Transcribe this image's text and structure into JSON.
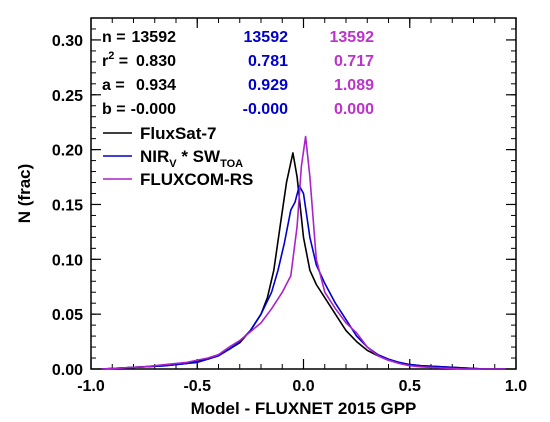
{
  "chart_data": {
    "type": "line",
    "xlabel": "Model - FLUXNET 2015 GPP",
    "ylabel": "N (frac)",
    "xlim": [
      -1.0,
      1.0
    ],
    "ylim": [
      0.0,
      0.32
    ],
    "xticks": [
      "-1.0",
      "-0.5",
      "0.0",
      "0.5",
      "1.0"
    ],
    "yticks": [
      "0.00",
      "0.05",
      "0.10",
      "0.15",
      "0.20",
      "0.25",
      "0.30"
    ],
    "xtick_values": [
      -1.0,
      -0.5,
      0.0,
      0.5,
      1.0
    ],
    "ytick_values": [
      0.0,
      0.05,
      0.1,
      0.15,
      0.2,
      0.25,
      0.3
    ],
    "x_minor_step": 0.1,
    "y_minor_step": 0.01,
    "grid": false,
    "legend_position": "upper-left",
    "stats": {
      "labels": [
        {
          "main": "n =",
          "sup": ""
        },
        {
          "main": "r",
          "sup": "2",
          "rest": " ="
        },
        {
          "main": "a =",
          "sup": ""
        },
        {
          "main": "b =",
          "sup": ""
        }
      ],
      "columns": [
        {
          "color": "#000000",
          "values": [
            "13592",
            "0.830",
            "0.934",
            "-0.000"
          ]
        },
        {
          "color": "#0000cc",
          "values": [
            "13592",
            "0.781",
            "0.929",
            "-0.000"
          ]
        },
        {
          "color": "#bb33cc",
          "values": [
            "13592",
            "0.717",
            "1.089",
            "0.000"
          ]
        }
      ]
    },
    "series": [
      {
        "name": "FluxSat-7",
        "legend_parts": {
          "main": "FluxSat-7"
        },
        "color": "#000000",
        "x": [
          -0.95,
          -0.85,
          -0.75,
          -0.65,
          -0.55,
          -0.5,
          -0.45,
          -0.4,
          -0.35,
          -0.3,
          -0.25,
          -0.2,
          -0.17,
          -0.14,
          -0.11,
          -0.08,
          -0.05,
          -0.03,
          0.0,
          0.03,
          0.06,
          0.1,
          0.15,
          0.2,
          0.25,
          0.3,
          0.35,
          0.4,
          0.45,
          0.5,
          0.55,
          0.65,
          0.75,
          0.85,
          0.95
        ],
        "y": [
          0.0,
          0.001,
          0.002,
          0.003,
          0.005,
          0.007,
          0.009,
          0.013,
          0.018,
          0.024,
          0.035,
          0.05,
          0.065,
          0.09,
          0.13,
          0.17,
          0.197,
          0.175,
          0.12,
          0.09,
          0.077,
          0.065,
          0.05,
          0.035,
          0.025,
          0.017,
          0.012,
          0.008,
          0.006,
          0.004,
          0.003,
          0.002,
          0.001,
          0.0,
          0.0
        ]
      },
      {
        "name": "NIRV * SWTOA",
        "legend_parts": {
          "main": "NIR",
          "sub1": "V",
          "mid": " * SW",
          "sub2": "TOA"
        },
        "color": "#0000cc",
        "x": [
          -0.95,
          -0.85,
          -0.75,
          -0.65,
          -0.55,
          -0.5,
          -0.45,
          -0.4,
          -0.35,
          -0.3,
          -0.25,
          -0.2,
          -0.15,
          -0.12,
          -0.09,
          -0.06,
          -0.04,
          -0.02,
          0.0,
          0.03,
          0.06,
          0.1,
          0.15,
          0.2,
          0.25,
          0.3,
          0.35,
          0.4,
          0.45,
          0.5,
          0.55,
          0.65,
          0.75,
          0.85,
          0.95
        ],
        "y": [
          0.0,
          0.001,
          0.002,
          0.003,
          0.005,
          0.006,
          0.009,
          0.012,
          0.018,
          0.025,
          0.035,
          0.05,
          0.07,
          0.09,
          0.115,
          0.145,
          0.152,
          0.167,
          0.16,
          0.12,
          0.095,
          0.078,
          0.06,
          0.045,
          0.03,
          0.02,
          0.013,
          0.009,
          0.006,
          0.004,
          0.003,
          0.002,
          0.001,
          0.0,
          0.0
        ]
      },
      {
        "name": "FLUXCOM-RS",
        "legend_parts": {
          "main": "FLUXCOM-RS"
        },
        "color": "#aa22cc",
        "x": [
          -0.95,
          -0.85,
          -0.75,
          -0.65,
          -0.55,
          -0.45,
          -0.4,
          -0.35,
          -0.3,
          -0.25,
          -0.2,
          -0.15,
          -0.1,
          -0.06,
          -0.03,
          -0.01,
          0.01,
          0.03,
          0.06,
          0.1,
          0.15,
          0.2,
          0.25,
          0.3,
          0.35,
          0.4,
          0.45,
          0.5,
          0.55,
          0.65,
          0.75,
          0.85,
          0.95
        ],
        "y": [
          0.0,
          0.001,
          0.002,
          0.004,
          0.006,
          0.01,
          0.013,
          0.02,
          0.026,
          0.034,
          0.042,
          0.055,
          0.07,
          0.085,
          0.13,
          0.185,
          0.212,
          0.175,
          0.1,
          0.07,
          0.055,
          0.042,
          0.033,
          0.02,
          0.012,
          0.008,
          0.005,
          0.003,
          0.002,
          0.001,
          0.0,
          0.0,
          0.0
        ]
      }
    ]
  }
}
